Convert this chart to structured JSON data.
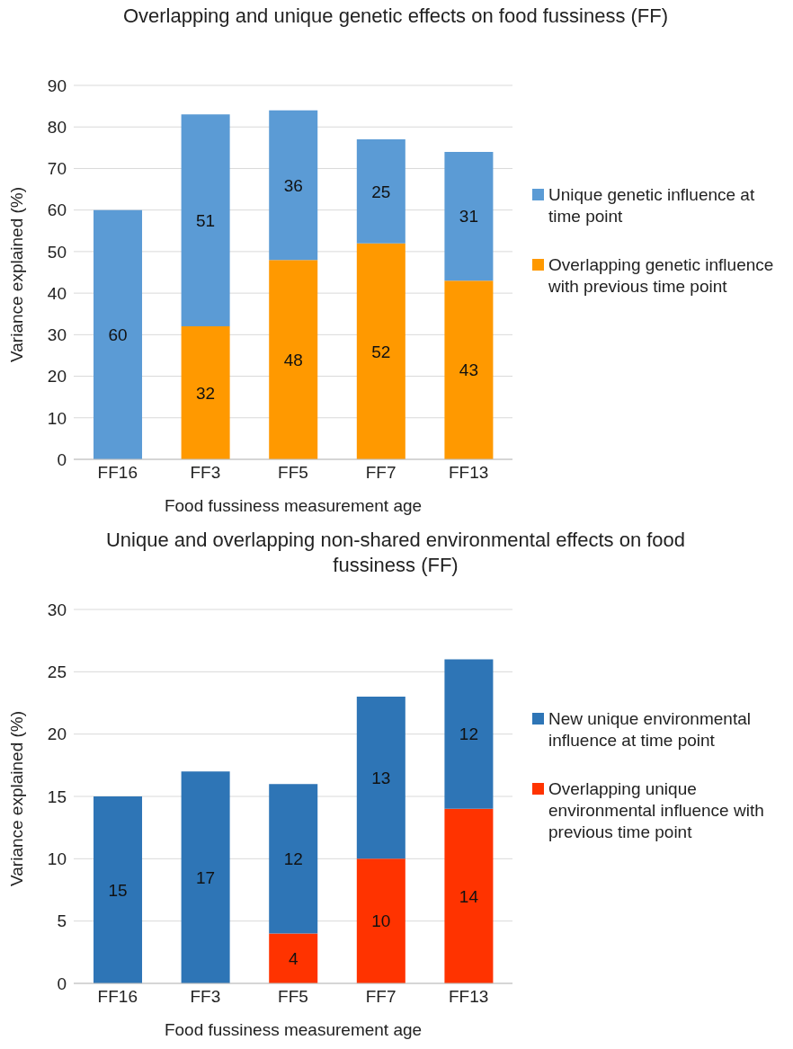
{
  "chart_data": [
    {
      "type": "bar",
      "title": "Overlapping and unique genetic effects on food fussiness (FF)",
      "xlabel": "Food fussiness measurement age",
      "ylabel": "Variance explained (%)",
      "categories": [
        "FF16",
        "FF3",
        "FF5",
        "FF7",
        "FF13"
      ],
      "stacked": true,
      "series": [
        {
          "name": "Overlapping genetic influence with previous time point",
          "color": "#ff9900",
          "values": [
            null,
            32,
            48,
            52,
            43
          ]
        },
        {
          "name": "Unique genetic influence at time point",
          "color": "#5b9bd5",
          "values": [
            60,
            51,
            36,
            25,
            31
          ]
        }
      ],
      "ylim": [
        0,
        90
      ],
      "yticks": [
        0,
        10,
        20,
        30,
        40,
        50,
        60,
        70,
        80,
        90
      ],
      "grid": "y",
      "legend": "right",
      "data_labels": true
    },
    {
      "type": "bar",
      "title": "Unique and overlapping non-shared environmental effects on food fussiness (FF)",
      "xlabel": "Food fussiness measurement age",
      "ylabel": "Variance explained (%)",
      "categories": [
        "FF16",
        "FF3",
        "FF5",
        "FF7",
        "FF13"
      ],
      "stacked": true,
      "series": [
        {
          "name": "Overlapping unique environmental influence with previous time point",
          "color": "#ff3300",
          "values": [
            null,
            null,
            4,
            10,
            14
          ]
        },
        {
          "name": "New unique environmental influence at time point",
          "color": "#2e75b6",
          "values": [
            15,
            17,
            12,
            13,
            12
          ]
        }
      ],
      "ylim": [
        0,
        30
      ],
      "yticks": [
        0,
        5,
        10,
        15,
        20,
        25,
        30
      ],
      "grid": "y",
      "legend": "right",
      "data_labels": true
    }
  ]
}
